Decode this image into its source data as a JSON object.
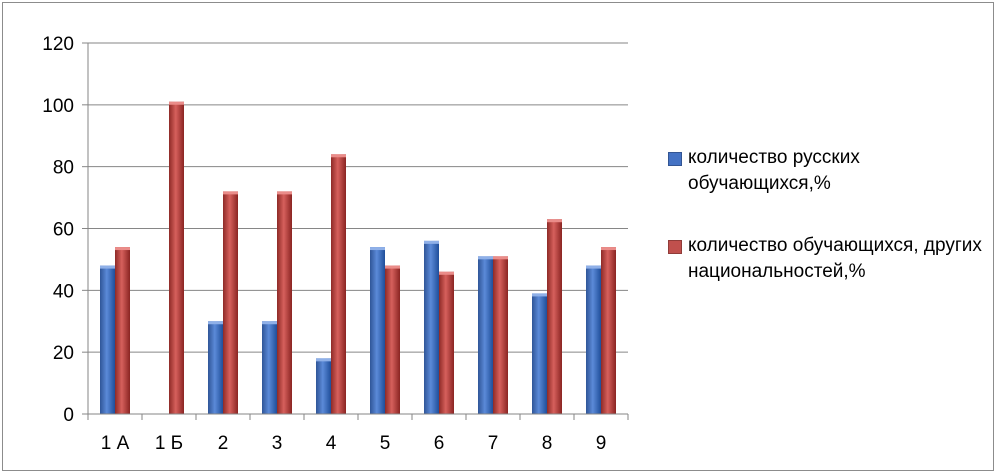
{
  "chart_data": {
    "type": "bar",
    "title": "",
    "xlabel": "",
    "ylabel": "",
    "ylim": [
      0,
      120
    ],
    "yticks": [
      0,
      20,
      40,
      60,
      80,
      100,
      120
    ],
    "grid": true,
    "legend_position": "right",
    "categories": [
      "1 А",
      "1 Б",
      "2",
      "3",
      "4",
      "5",
      "6",
      "7",
      "8",
      "9"
    ],
    "series": [
      {
        "name": "количество русских обучающихся,%",
        "color": "#4472c4",
        "values": [
          48,
          0,
          30,
          30,
          18,
          54,
          56,
          51,
          39,
          48
        ]
      },
      {
        "name": "количество обучающихся, других национальностей,%",
        "color": "#c0504d",
        "values": [
          54,
          101,
          72,
          72,
          84,
          48,
          46,
          51,
          63,
          54
        ]
      }
    ]
  }
}
